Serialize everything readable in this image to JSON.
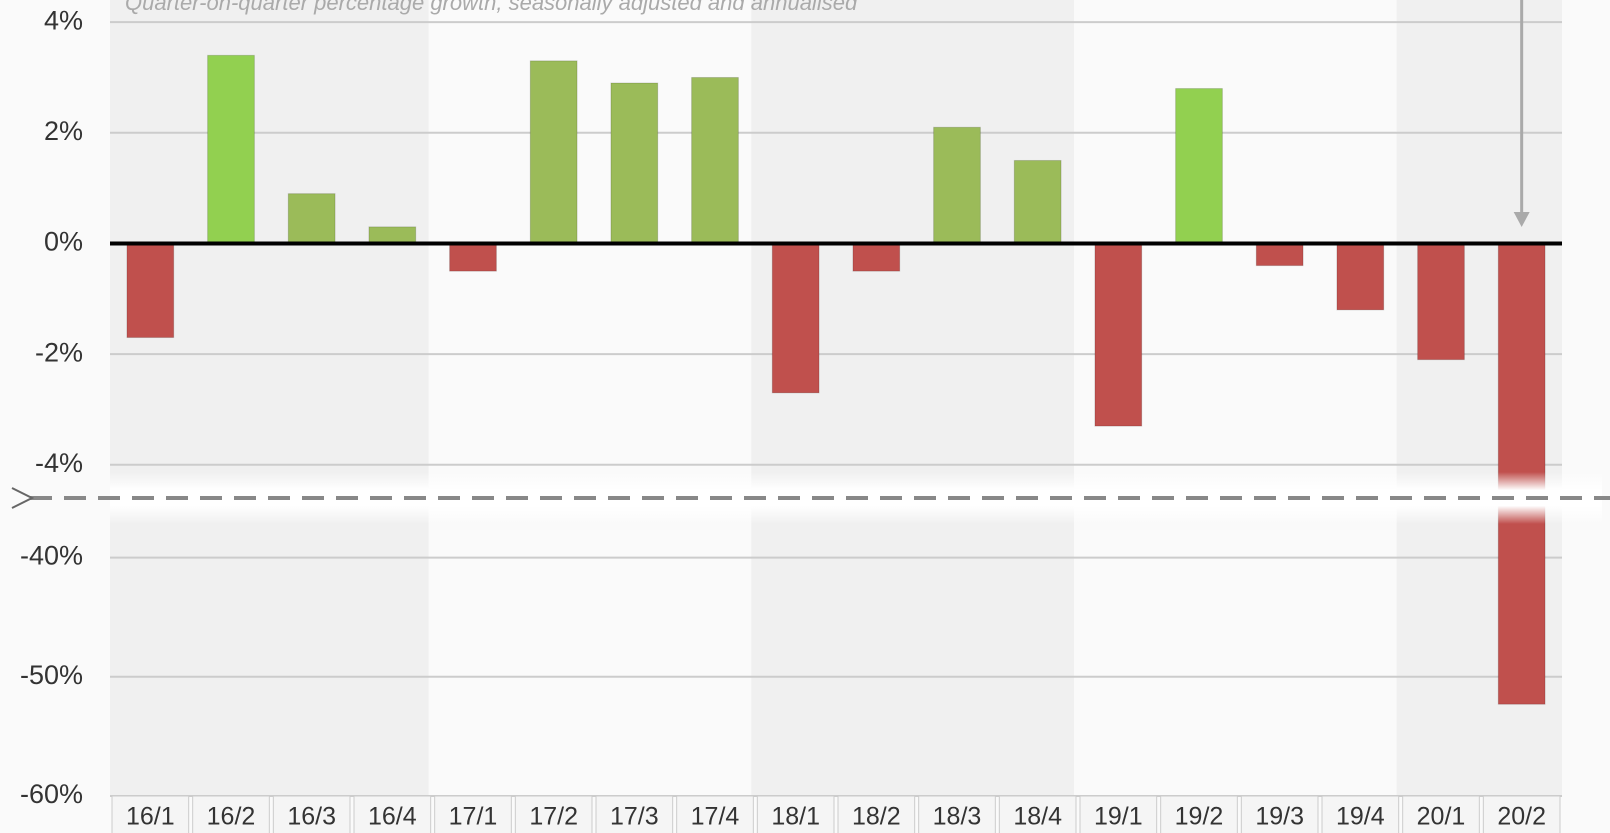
{
  "chart_data": {
    "type": "bar",
    "subtitle": "Quarter-on-quarter percentage growth, seasonally adjusted and annualised",
    "categories": [
      "16/1",
      "16/2",
      "16/3",
      "16/4",
      "17/1",
      "17/2",
      "17/3",
      "17/4",
      "18/1",
      "18/2",
      "18/3",
      "18/4",
      "19/1",
      "19/2",
      "19/3",
      "19/4",
      "20/1",
      "20/2"
    ],
    "values": [
      -1.7,
      3.4,
      0.9,
      0.3,
      -0.5,
      3.3,
      2.9,
      3.0,
      -2.7,
      -0.5,
      2.1,
      1.5,
      -3.3,
      2.8,
      -0.4,
      -1.2,
      -2.1,
      -52.3
    ],
    "colors": [
      "#c0504d",
      "#92d050",
      "#9bbb59",
      "#9bbb59",
      "#c0504d",
      "#9bbb59",
      "#9bbb59",
      "#9bbb59",
      "#c0504d",
      "#c0504d",
      "#9bbb59",
      "#9bbb59",
      "#c0504d",
      "#92d050",
      "#c0504d",
      "#c0504d",
      "#c0504d",
      "#c0504d"
    ],
    "ylim": [
      -4.6,
      4.4
    ],
    "yticks": [
      {
        "value": 4,
        "label": "4%"
      },
      {
        "value": 2,
        "label": "2%"
      },
      {
        "value": 0,
        "label": "0%"
      },
      {
        "value": -2,
        "label": "-2%"
      },
      {
        "value": -4,
        "label": "-4%"
      }
    ],
    "axis_break": {
      "ylim": [
        -60,
        -35
      ],
      "yticks": [
        {
          "value": -40,
          "label": "-40%"
        },
        {
          "value": -50,
          "label": "-50%"
        },
        {
          "value": -60,
          "label": "-60%"
        }
      ]
    },
    "grid": true
  }
}
